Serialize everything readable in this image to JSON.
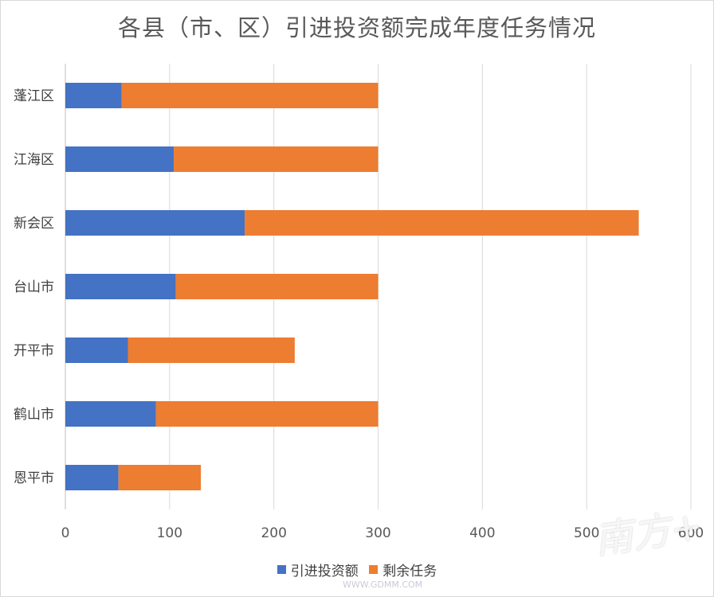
{
  "chart_data": {
    "type": "bar",
    "orientation": "horizontal",
    "stacked": true,
    "title": "各县（市、区）引进投资额完成年度任务情况",
    "categories": [
      "蓬江区",
      "江海区",
      "新会区",
      "台山市",
      "开平市",
      "鹤山市",
      "恩平市"
    ],
    "series": [
      {
        "name": "引进投资额",
        "color": "#4472c4",
        "values": [
          54,
          104,
          172,
          106,
          60,
          87,
          51
        ]
      },
      {
        "name": "剩余任务",
        "color": "#ed7d31",
        "values": [
          246,
          196,
          378,
          194,
          160,
          213,
          79
        ]
      }
    ],
    "xlim": [
      0,
      600
    ],
    "xticks": [
      0,
      100,
      200,
      300,
      400,
      500,
      600
    ],
    "grid": true,
    "legend": "bottom"
  },
  "watermark": {
    "text": "南方+",
    "site": "WWW.GDMM.COM"
  }
}
